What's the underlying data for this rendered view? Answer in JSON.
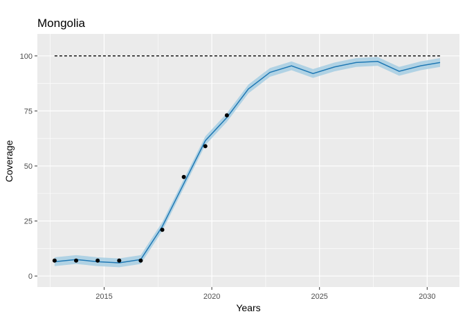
{
  "chart_data": {
    "type": "line",
    "title": "Mongolia",
    "xlabel": "Years",
    "ylabel": "Coverage",
    "xlim": [
      2011.9,
      2031.5
    ],
    "ylim": [
      -5,
      110
    ],
    "x_ticks": [
      2015,
      2020,
      2025,
      2030
    ],
    "y_ticks": [
      0,
      25,
      50,
      75,
      100
    ],
    "grid": true,
    "colors": {
      "panel": "#ebebeb",
      "grid": "#ffffff",
      "line": "#1f78b4",
      "band": "#a6cee3",
      "points": "#000000",
      "target": "#000000"
    },
    "reference_line": {
      "y": 100,
      "x": [
        2012.7,
        2030.6
      ],
      "style": "dashed"
    },
    "series": [
      {
        "type": "line",
        "x": [
          2012.7,
          2013.7,
          2014.7,
          2015.7,
          2016.7,
          2017.7,
          2018.7,
          2019.7,
          2020.7,
          2021.7,
          2022.7,
          2023.7,
          2024.7,
          2025.7,
          2026.7,
          2027.7,
          2028.7,
          2029.7,
          2030.6
        ],
        "y": [
          6.5,
          7.5,
          6.5,
          6.0,
          7.5,
          22.5,
          42.0,
          61.5,
          72.0,
          85.0,
          92.5,
          95.5,
          92.0,
          95.0,
          97.0,
          97.5,
          93.0,
          95.5,
          97.0
        ],
        "lower": [
          4.5,
          5.5,
          4.5,
          4.0,
          5.5,
          20.5,
          40.0,
          59.5,
          70.0,
          83.0,
          90.5,
          93.5,
          90.0,
          93.0,
          95.0,
          95.5,
          91.0,
          93.5,
          95.0
        ],
        "upper": [
          8.5,
          9.5,
          8.5,
          8.0,
          9.5,
          24.5,
          44.0,
          63.5,
          74.0,
          87.0,
          94.5,
          97.5,
          94.0,
          97.0,
          99.0,
          99.5,
          95.0,
          97.5,
          99.0
        ]
      },
      {
        "type": "scatter",
        "x": [
          2012.7,
          2013.7,
          2014.7,
          2015.7,
          2016.7,
          2017.7,
          2018.7,
          2019.7,
          2020.7
        ],
        "y": [
          7,
          7,
          7,
          7,
          7,
          21,
          45,
          59,
          73
        ]
      }
    ]
  }
}
